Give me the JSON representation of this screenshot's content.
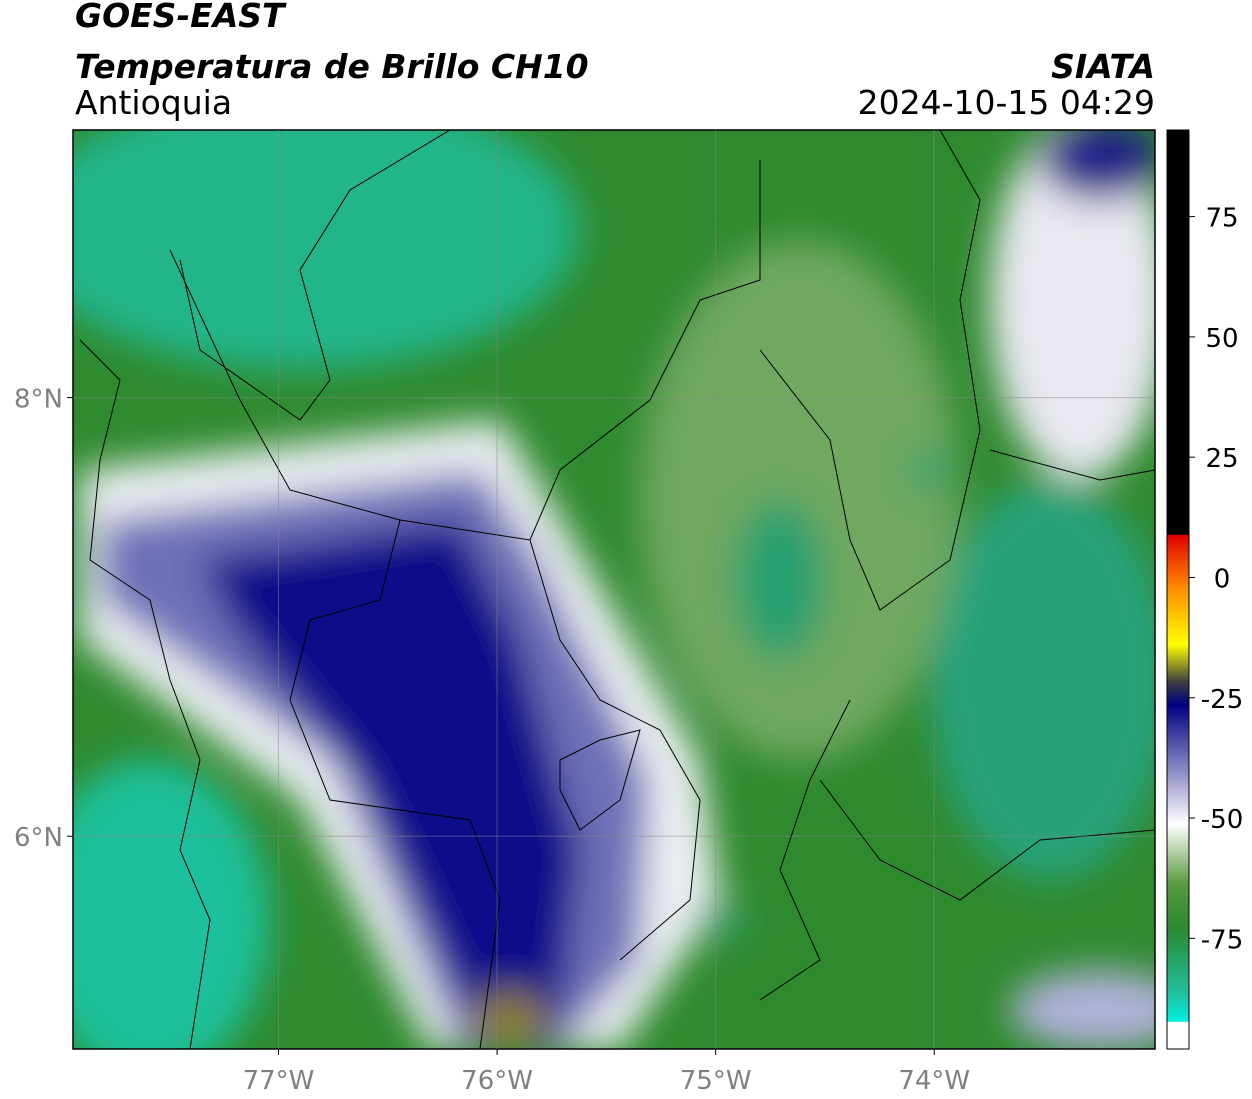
{
  "header": {
    "title": "GOES-EAST",
    "subtitle": "Temperatura de Brillo CH10",
    "region": "Antioquia",
    "source": "SIATA",
    "datetime": "2024-10-15 04:29"
  },
  "map": {
    "xlim": [
      -77.94,
      -72.99
    ],
    "ylim": [
      5.03,
      9.22
    ],
    "xticks": [
      {
        "value": -77,
        "label": "77°W"
      },
      {
        "value": -76,
        "label": "76°W"
      },
      {
        "value": -75,
        "label": "75°W"
      },
      {
        "value": -74,
        "label": "74°W"
      }
    ],
    "yticks": [
      {
        "value": 8,
        "label": "8°N"
      },
      {
        "value": 6,
        "label": "6°N"
      }
    ]
  },
  "colorbar": {
    "lim": [
      -98,
      93
    ],
    "ticks": [
      75,
      50,
      25,
      0,
      -25,
      -50,
      -75
    ]
  }
}
